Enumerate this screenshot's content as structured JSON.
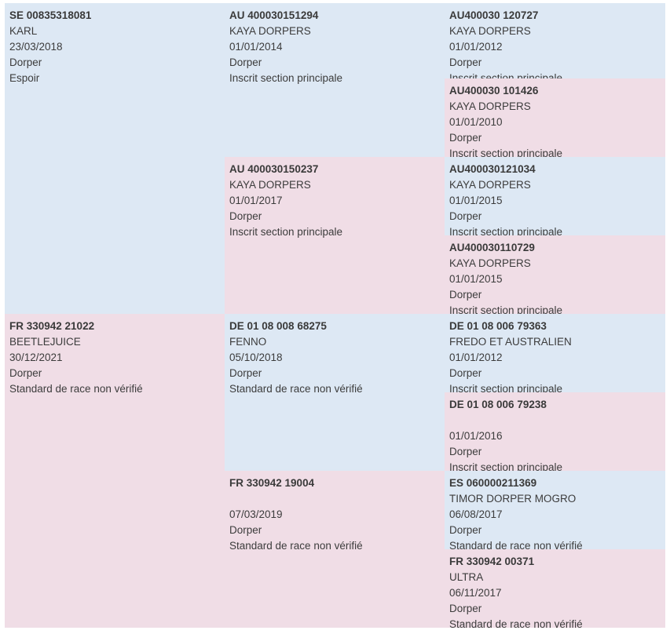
{
  "colors": {
    "male": "#dde8f4",
    "female": "#f0dde6"
  },
  "parents": [
    {
      "id": "SE 00835318081",
      "name": "KARL",
      "date": "23/03/2018",
      "breed": "Dorper",
      "status": "Espoir"
    },
    {
      "id": "FR 330942 21022",
      "name": "BEETLEJUICE",
      "date": "30/12/2021",
      "breed": "Dorper",
      "status": "Standard de race non vérifié"
    }
  ],
  "grandparents": [
    {
      "id": "AU 400030151294",
      "name": "KAYA DORPERS",
      "date": "01/01/2014",
      "breed": "Dorper",
      "status": "Inscrit section principale"
    },
    {
      "id": "AU 400030150237",
      "name": "KAYA DORPERS",
      "date": "01/01/2017",
      "breed": "Dorper",
      "status": "Inscrit section principale"
    },
    {
      "id": "DE 01 08 008 68275",
      "name": "FENNO",
      "date": "05/10/2018",
      "breed": "Dorper",
      "status": "Standard de race non vérifié"
    },
    {
      "id": "FR 330942 19004",
      "name": "",
      "date": "07/03/2019",
      "breed": "Dorper",
      "status": "Standard de race non vérifié"
    }
  ],
  "great_grandparents": [
    {
      "id": "AU400030 120727",
      "name": "KAYA DORPERS",
      "date": "01/01/2012",
      "breed": "Dorper",
      "status": "Inscrit section principale"
    },
    {
      "id": "AU400030 101426",
      "name": "KAYA DORPERS",
      "date": "01/01/2010",
      "breed": "Dorper",
      "status": "Inscrit section principale"
    },
    {
      "id": "AU400030121034",
      "name": "KAYA DORPERS",
      "date": "01/01/2015",
      "breed": "Dorper",
      "status": "Inscrit section principale"
    },
    {
      "id": "AU400030110729",
      "name": "KAYA DORPERS",
      "date": "01/01/2015",
      "breed": "Dorper",
      "status": "Inscrit section principale"
    },
    {
      "id": "DE 01 08 006 79363",
      "name": "FREDO ET AUSTRALIEN",
      "date": "01/01/2012",
      "breed": "Dorper",
      "status": "Inscrit section principale"
    },
    {
      "id": "DE 01 08 006 79238",
      "name": "",
      "date": "01/01/2016",
      "breed": "Dorper",
      "status": "Inscrit section principale"
    },
    {
      "id": "ES 060000211369",
      "name": "TIMOR DORPER MOGRO",
      "date": "06/08/2017",
      "breed": "Dorper",
      "status": "Standard de race non vérifié"
    },
    {
      "id": "FR 330942 00371",
      "name": "ULTRA",
      "date": "06/11/2017",
      "breed": "Dorper",
      "status": "Standard de race non vérifié"
    }
  ]
}
